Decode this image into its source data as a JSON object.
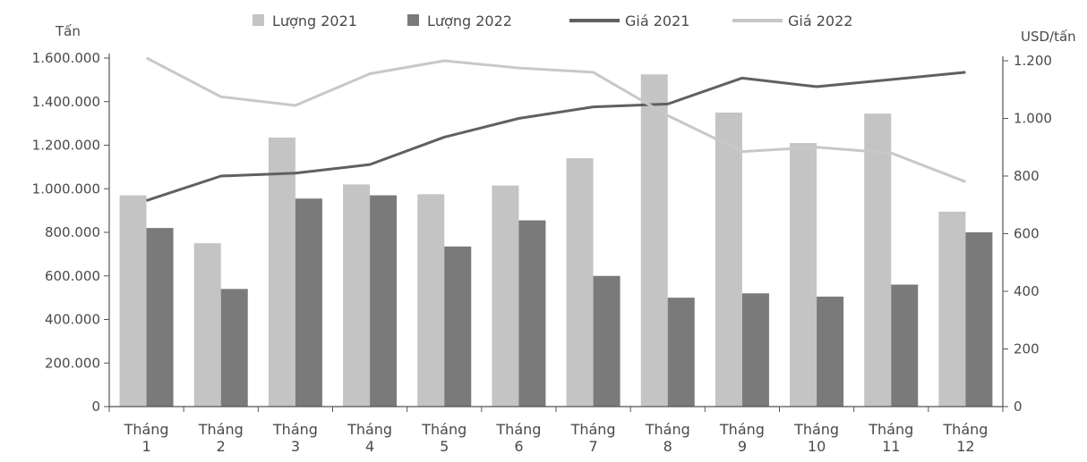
{
  "chart_data": {
    "type": "bar",
    "title": "",
    "categories": [
      [
        "Tháng",
        "1"
      ],
      [
        "Tháng",
        "2"
      ],
      [
        "Tháng",
        "3"
      ],
      [
        "Tháng",
        "4"
      ],
      [
        "Tháng",
        "5"
      ],
      [
        "Tháng",
        "6"
      ],
      [
        "Tháng",
        "7"
      ],
      [
        "Tháng",
        "8"
      ],
      [
        "Tháng",
        "9"
      ],
      [
        "Tháng",
        "10"
      ],
      [
        "Tháng",
        "11"
      ],
      [
        "Tháng",
        "12"
      ]
    ],
    "left_axis": {
      "label": "Tấn",
      "range": [
        0,
        1600000
      ],
      "ticks": [
        0,
        200000,
        400000,
        600000,
        800000,
        1000000,
        1200000,
        1400000,
        1600000
      ],
      "tick_labels": [
        "0",
        "200.000",
        "400.000",
        "600.000",
        "800.000",
        "1.000.000",
        "1.200.000",
        "1.400.000",
        "1.600.000"
      ]
    },
    "right_axis": {
      "label": "USD/tấn",
      "range": [
        0,
        1200
      ],
      "ticks": [
        0,
        200,
        400,
        600,
        800,
        1000,
        1200
      ],
      "tick_labels": [
        "0",
        "200",
        "400",
        "600",
        "800",
        "1.000",
        "1.200"
      ]
    },
    "grid": false,
    "legend_position": "top",
    "series": [
      {
        "name": "Lượng 2021",
        "kind": "bar",
        "axis": "left",
        "color": "#c4c4c4",
        "values": [
          970000,
          750000,
          1235000,
          1020000,
          975000,
          1015000,
          1140000,
          1525000,
          1350000,
          1210000,
          1345000,
          895000
        ]
      },
      {
        "name": "Lượng 2022",
        "kind": "bar",
        "axis": "left",
        "color": "#7a7a7a",
        "values": [
          820000,
          540000,
          955000,
          970000,
          735000,
          855000,
          600000,
          500000,
          520000,
          505000,
          560000,
          800000
        ]
      },
      {
        "name": "Giá 2021",
        "kind": "line",
        "axis": "right",
        "color": "#606060",
        "values": [
          715,
          800,
          810,
          840,
          935,
          1000,
          1040,
          1050,
          1140,
          1110,
          1135,
          1160
        ]
      },
      {
        "name": "Giá 2022",
        "kind": "line",
        "axis": "right",
        "color": "#c8c8c8",
        "values": [
          1210,
          1075,
          1045,
          1155,
          1200,
          1175,
          1160,
          1010,
          885,
          900,
          880,
          780
        ]
      }
    ]
  }
}
